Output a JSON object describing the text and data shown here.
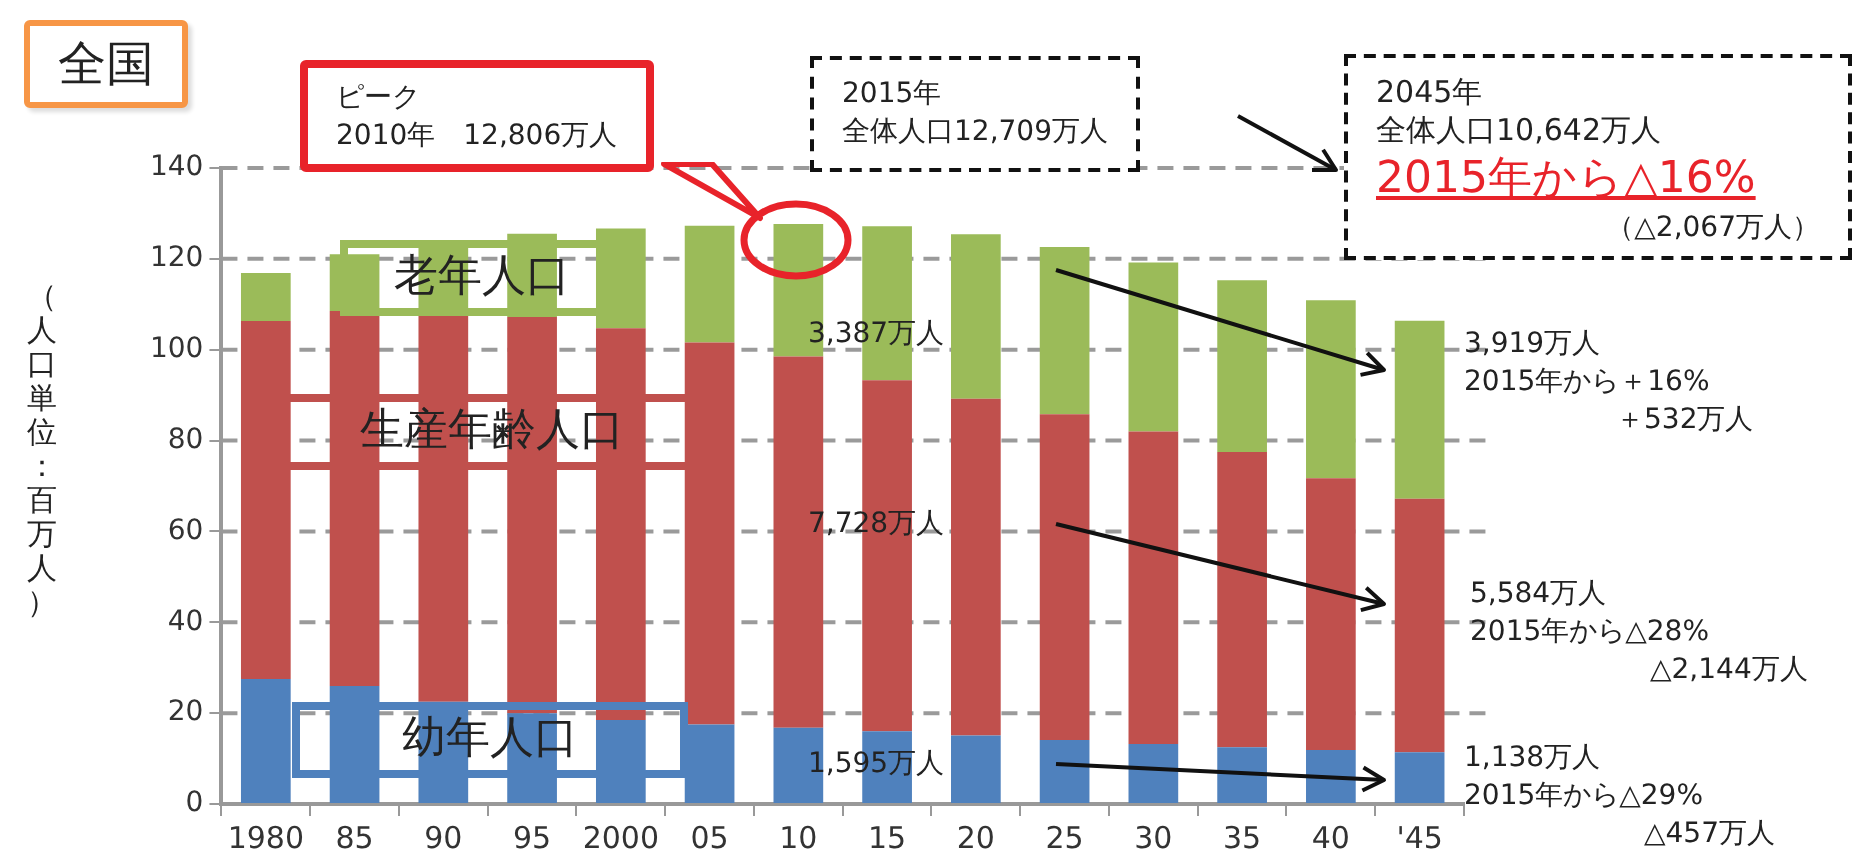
{
  "chart_data": {
    "type": "bar",
    "title": "全国",
    "ylabel": "（人口単位：百万人）",
    "categories": [
      "1980",
      "85",
      "90",
      "95",
      "2000",
      "05",
      "10",
      "15",
      "20",
      "25",
      "30",
      "35",
      "40",
      "'45"
    ],
    "stacked": true,
    "series": [
      {
        "name": "幼年人口",
        "color": "#4f81bd",
        "values": [
          27.5,
          26.0,
          22.5,
          20.0,
          18.5,
          17.5,
          16.8,
          16.0,
          15.1,
          14.1,
          13.2,
          12.5,
          11.9,
          11.4
        ]
      },
      {
        "name": "生産年齢人口",
        "color": "#c0504d",
        "values": [
          78.8,
          82.5,
          86.0,
          87.2,
          86.2,
          84.1,
          81.7,
          77.3,
          74.1,
          71.7,
          68.8,
          65.0,
          59.8,
          55.8
        ]
      },
      {
        "name": "老年人口",
        "color": "#9bbb59",
        "values": [
          10.6,
          12.5,
          14.9,
          18.3,
          22.0,
          25.7,
          29.2,
          33.9,
          36.2,
          36.8,
          37.2,
          37.8,
          39.2,
          39.2
        ]
      }
    ],
    "ylim": [
      0,
      140
    ],
    "yticks": [
      0,
      20,
      40,
      60,
      80,
      100,
      120,
      140
    ],
    "grid": "y",
    "legend": false,
    "annotations": [
      "ピーク",
      "2010年　12,806万人",
      "2015年",
      "全体人口12,709万人",
      "2045年",
      "全体人口10,642万人",
      "2015年から△16%",
      "（△2,067万人）",
      "3,387万人",
      "7,728万人",
      "1,595万人",
      "3,919万人",
      "2015年から＋16%",
      "＋532万人",
      "5,584万人",
      "2015年から△28%",
      "△2,144万人",
      "1,138万人",
      "2015年から△29%",
      "△457万人"
    ]
  }
}
